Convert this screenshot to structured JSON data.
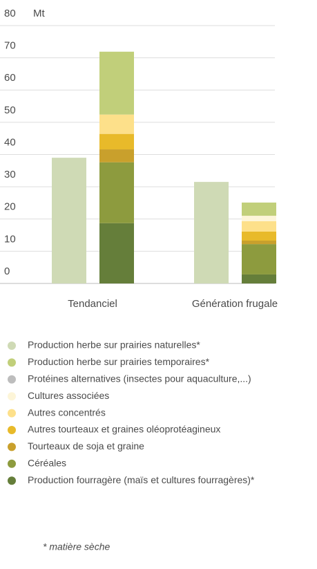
{
  "chart_data": {
    "type": "bar",
    "stacked": true,
    "y_label": "Mt",
    "categories": [
      "Tendanciel",
      "Génération frugale"
    ],
    "ylim": [
      0,
      80
    ],
    "yticks": [
      0,
      10,
      20,
      30,
      40,
      50,
      60,
      70,
      80
    ],
    "grid": true,
    "series": [
      {
        "name": "Production herbe sur prairies naturelles*",
        "color": "#cfdab5",
        "stack": false,
        "values": [
          39,
          31.5
        ]
      },
      {
        "name": "Production herbe sur prairies temporaires*",
        "color": "#c1cf7a",
        "values": [
          19.5,
          4.1
        ]
      },
      {
        "name": "Protéines alternatives (insectes pour aquaculture,...)",
        "color": "#bdbdbd",
        "values": [
          0,
          0
        ]
      },
      {
        "name": "Cultures associées",
        "color": "#fdf5d8",
        "values": [
          0,
          1.7
        ]
      },
      {
        "name": "Autres concentrés",
        "color": "#fde08a",
        "values": [
          6,
          3.2
        ]
      },
      {
        "name": "Autres tourteaux et graines oléoprotéagineux",
        "color": "#e8ba2a",
        "values": [
          4.8,
          2.8
        ]
      },
      {
        "name": "Tourteaux de soja et graine",
        "color": "#c9a02c",
        "values": [
          4,
          1.1
        ]
      },
      {
        "name": "Céréales",
        "color": "#8d9b3e",
        "values": [
          18.9,
          9.4
        ]
      },
      {
        "name": "Production fourragère (maïs et cultures fourragères)*",
        "color": "#657e3a",
        "values": [
          18.7,
          2.8
        ]
      }
    ],
    "note": "* matière sèche"
  }
}
